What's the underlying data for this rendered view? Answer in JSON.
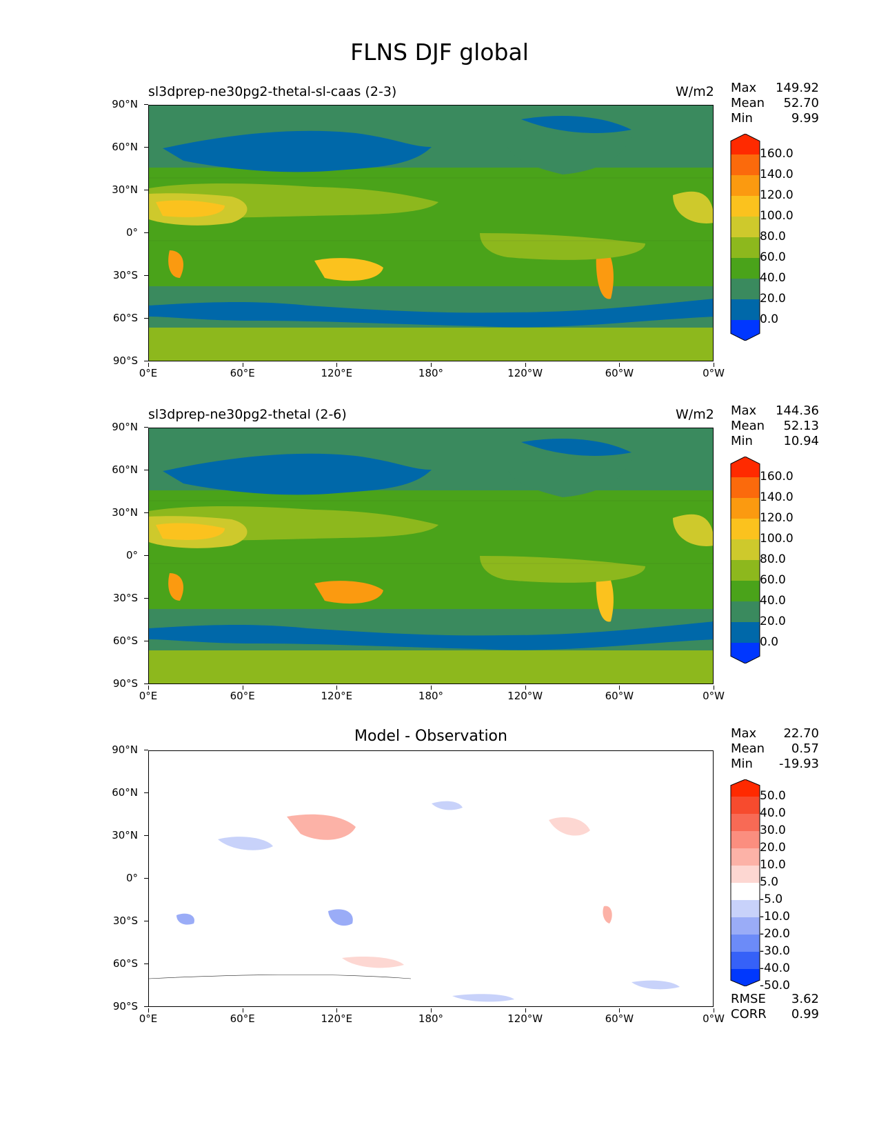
{
  "title": "FLNS DJF global",
  "units": "W/m2",
  "y_ticks": [
    "90°N",
    "60°N",
    "30°N",
    "0°",
    "30°S",
    "60°S",
    "90°S"
  ],
  "x_ticks": [
    "0°E",
    "60°E",
    "120°E",
    "180°",
    "120°W",
    "60°W",
    "0°W"
  ],
  "model_colors": [
    "#0037ff",
    "#0068a9",
    "#3a8a5e",
    "#4aa31a",
    "#8db81d",
    "#cec92c",
    "#fbc21e",
    "#fb9a10",
    "#fb6a0c",
    "#ff2a00"
  ],
  "model_levels": [
    "160.0",
    "140.0",
    "120.0",
    "100.0",
    "80.0",
    "60.0",
    "40.0",
    "20.0",
    "0.0"
  ],
  "diff_colors": [
    "#0038fd",
    "#3661f8",
    "#6c8bf8",
    "#9aacf7",
    "#c8d2fa",
    "#ffffff",
    "#fdd7d2",
    "#fcb2a7",
    "#fb8e7f",
    "#f86a55",
    "#f74b2e",
    "#ff2a00"
  ],
  "diff_levels": [
    "50.0",
    "40.0",
    "30.0",
    "20.0",
    "10.0",
    "5.0",
    "-5.0",
    "-10.0",
    "-20.0",
    "-30.0",
    "-40.0",
    "-50.0"
  ],
  "panels": [
    {
      "title_left": "sl3dprep-ne30pg2-thetal-sl-caas (2-3)",
      "title_right": "W/m2",
      "stats": [
        [
          "Max",
          "149.92"
        ],
        [
          "Mean",
          "52.70"
        ],
        [
          "Min",
          "9.99"
        ]
      ]
    },
    {
      "title_left": "sl3dprep-ne30pg2-thetal (2-6)",
      "title_right": "W/m2",
      "stats": [
        [
          "Max",
          "144.36"
        ],
        [
          "Mean",
          "52.13"
        ],
        [
          "Min",
          "10.94"
        ]
      ]
    },
    {
      "title_center": "Model - Observation",
      "stats": [
        [
          "Max",
          "22.70"
        ],
        [
          "Mean",
          "0.57"
        ],
        [
          "Min",
          "-19.93"
        ]
      ],
      "extra_stats": [
        [
          "RMSE",
          "3.62"
        ],
        [
          "CORR",
          "0.99"
        ]
      ]
    }
  ],
  "chart_data": [
    {
      "type": "heatmap",
      "title": "sl3dprep-ne30pg2-thetal-sl-caas (2-3)",
      "units": "W/m2",
      "xlim": [
        0,
        360
      ],
      "ylim": [
        -90,
        90
      ],
      "max": 149.92,
      "mean": 52.7,
      "min": 9.99,
      "levels": [
        0,
        20,
        40,
        60,
        80,
        100,
        120,
        140,
        160
      ]
    },
    {
      "type": "heatmap",
      "title": "sl3dprep-ne30pg2-thetal (2-6)",
      "units": "W/m2",
      "xlim": [
        0,
        360
      ],
      "ylim": [
        -90,
        90
      ],
      "max": 144.36,
      "mean": 52.13,
      "min": 10.94,
      "levels": [
        0,
        20,
        40,
        60,
        80,
        100,
        120,
        140,
        160
      ]
    },
    {
      "type": "heatmap",
      "title": "Model - Observation",
      "xlim": [
        0,
        360
      ],
      "ylim": [
        -90,
        90
      ],
      "max": 22.7,
      "mean": 0.57,
      "min": -19.93,
      "rmse": 3.62,
      "corr": 0.99,
      "levels": [
        -50,
        -40,
        -30,
        -20,
        -10,
        -5,
        5,
        10,
        20,
        30,
        40,
        50
      ]
    }
  ]
}
